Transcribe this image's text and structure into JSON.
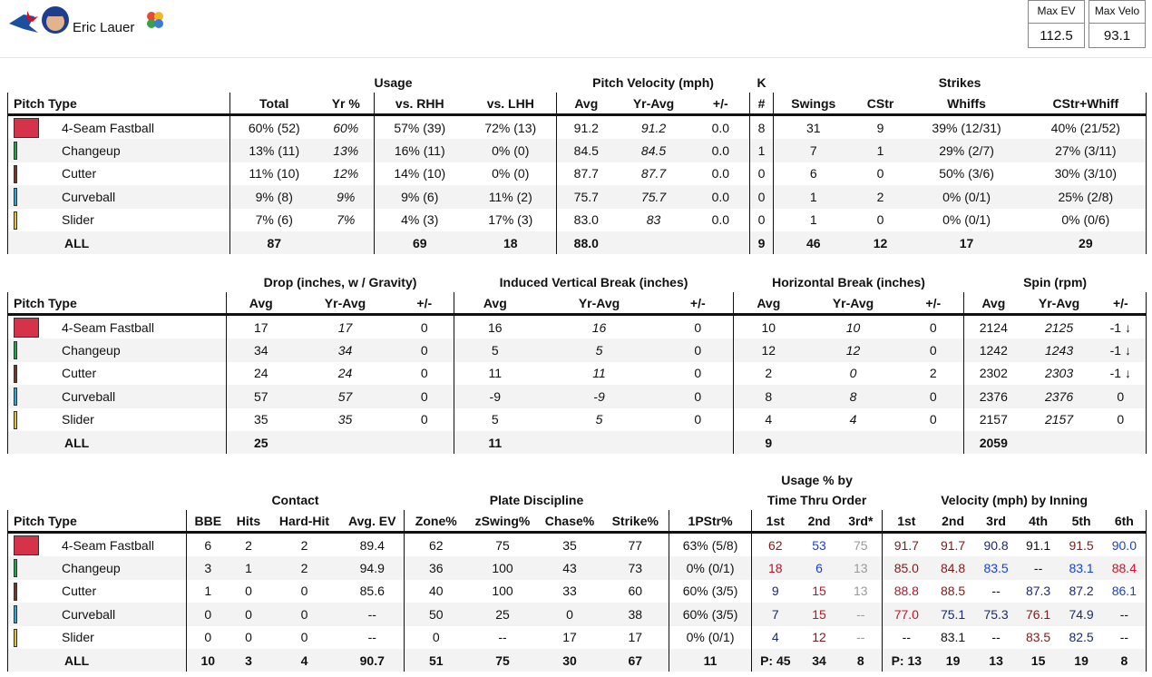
{
  "header": {
    "name": "Eric Lauer",
    "stats": [
      {
        "label": "Max EV",
        "value": "112.5"
      },
      {
        "label": "Max Velo",
        "value": "93.1"
      }
    ]
  },
  "tables": [
    {
      "groups": [
        null,
        "Usage",
        "Pitch Velocity (mph)",
        "K",
        "Strikes"
      ],
      "columns": [
        "Pitch Type",
        "Total",
        "Yr %",
        "vs. RHH",
        "vs. LHH",
        "Avg",
        "Yr-Avg",
        "+/-",
        "#",
        "Swings",
        "CStr",
        "Whiffs",
        "CStr+Whiff"
      ],
      "rows": [
        {
          "name": "4-Seam Fastball",
          "color": "#d6334a",
          "cells": [
            "60% (52)",
            "60%",
            "57% (39)",
            "72% (13)",
            "91.2",
            "91.2",
            "0.0",
            "8",
            "31",
            "9",
            "39% (12/31)",
            "40% (21/52)"
          ]
        },
        {
          "name": "Changeup",
          "color": "#1fa84a",
          "cells": [
            "13% (11)",
            "13%",
            "16% (11)",
            "0% (0)",
            "84.5",
            "84.5",
            "0.0",
            "1",
            "7",
            "1",
            "29% (2/7)",
            "27% (3/11)"
          ]
        },
        {
          "name": "Cutter",
          "color": "#7a3327",
          "cells": [
            "11% (10)",
            "12%",
            "14% (10)",
            "0% (0)",
            "87.7",
            "87.7",
            "0.0",
            "0",
            "6",
            "0",
            "50% (3/6)",
            "30% (3/10)"
          ]
        },
        {
          "name": "Curveball",
          "color": "#27a8e0",
          "cells": [
            "9% (8)",
            "9%",
            "9% (6)",
            "11% (2)",
            "75.7",
            "75.7",
            "0.0",
            "0",
            "1",
            "2",
            "0% (0/1)",
            "25% (2/8)"
          ]
        },
        {
          "name": "Slider",
          "color": "#e8c530",
          "cells": [
            "7% (6)",
            "7%",
            "4% (3)",
            "17% (3)",
            "83.0",
            "83",
            "0.0",
            "0",
            "1",
            "0",
            "0% (0/1)",
            "0% (0/6)"
          ]
        },
        {
          "name": "ALL",
          "cells": [
            "87",
            null,
            "69",
            "18",
            "88.0",
            null,
            null,
            "9",
            "46",
            "12",
            "17",
            "29"
          ]
        }
      ]
    },
    {
      "groups": [
        null,
        "Drop (inches, w / Gravity)",
        "Induced Vertical Break (inches)",
        "Horizontal Break (inches)",
        "Spin (rpm)"
      ],
      "columns": [
        "Pitch Type",
        "Avg",
        "Yr-Avg",
        "+/-",
        "Avg",
        "Yr-Avg",
        "+/-",
        "Avg",
        "Yr-Avg",
        "+/-",
        "Avg",
        "Yr-Avg",
        "+/-"
      ],
      "rows": [
        {
          "name": "4-Seam Fastball",
          "color": "#d6334a",
          "cells": [
            "17",
            "17",
            "0",
            "16",
            "16",
            "0",
            "10",
            "10",
            "0",
            "2124",
            "2125",
            "-1 ↓"
          ]
        },
        {
          "name": "Changeup",
          "color": "#1fa84a",
          "cells": [
            "34",
            "34",
            "0",
            "5",
            "5",
            "0",
            "12",
            "12",
            "0",
            "1242",
            "1243",
            "-1 ↓"
          ]
        },
        {
          "name": "Cutter",
          "color": "#7a3327",
          "cells": [
            "24",
            "24",
            "0",
            "11",
            "11",
            "0",
            "2",
            "0",
            "2",
            "2302",
            "2303",
            "-1 ↓"
          ]
        },
        {
          "name": "Curveball",
          "color": "#27a8e0",
          "cells": [
            "57",
            "57",
            "0",
            "-9",
            "-9",
            "0",
            "8",
            "8",
            "0",
            "2376",
            "2376",
            "0"
          ]
        },
        {
          "name": "Slider",
          "color": "#e8c530",
          "cells": [
            "35",
            "35",
            "0",
            "5",
            "5",
            "0",
            "4",
            "4",
            "0",
            "2157",
            "2157",
            "0"
          ]
        },
        {
          "name": "ALL",
          "cells": [
            "25",
            null,
            null,
            "11",
            null,
            null,
            "9",
            null,
            null,
            "2059",
            null,
            null
          ]
        }
      ]
    },
    {
      "groups": [
        null,
        "Contact",
        "Plate Discipline",
        null,
        [
          "Usage % by",
          "Time Thru Order"
        ],
        "Velocity (mph) by Inning"
      ],
      "columns": [
        "Pitch Type",
        "BBE",
        "Hits",
        "Hard-Hit",
        "Avg. EV",
        "Zone%",
        "zSwing%",
        "Chase%",
        "Strike%",
        "1PStr%",
        "1st",
        "2nd",
        "3rd*",
        "1st",
        "2nd",
        "3rd",
        "4th",
        "5th",
        "6th"
      ],
      "rows": [
        {
          "name": "4-Seam Fastball",
          "color": "#d6334a",
          "cells": [
            "6",
            "2",
            "2",
            "89.4",
            "62",
            "75",
            "35",
            "77",
            "63% (5/8)",
            {
              "text": "62",
              "color": "#7b1c1c"
            },
            {
              "text": "53",
              "color": "#1a3fd6"
            },
            {
              "text": "75",
              "color": "#999999"
            },
            {
              "text": "91.7",
              "color": "#7b1c1c"
            },
            {
              "text": "91.7",
              "color": "#7b1c1c"
            },
            {
              "text": "90.8",
              "color": "#1b2a6b"
            },
            {
              "text": "91.1",
              "color": "#111111"
            },
            {
              "text": "91.5",
              "color": "#7b1c1c"
            },
            {
              "text": "90.0",
              "color": "#1a3fd6"
            }
          ]
        },
        {
          "name": "Changeup",
          "color": "#1fa84a",
          "cells": [
            "3",
            "1",
            "2",
            "94.9",
            "36",
            "100",
            "43",
            "73",
            "0% (0/1)",
            {
              "text": "18",
              "color": "#b0182a"
            },
            {
              "text": "6",
              "color": "#1a3fd6"
            },
            {
              "text": "13",
              "color": "#999999"
            },
            {
              "text": "85.0",
              "color": "#7b1c1c"
            },
            {
              "text": "84.8",
              "color": "#7b1c1c"
            },
            {
              "text": "83.5",
              "color": "#1a3fd6"
            },
            {
              "text": "--",
              "color": "#111111"
            },
            {
              "text": "83.1",
              "color": "#1a3fd6"
            },
            {
              "text": "88.4",
              "color": "#d0102a"
            }
          ]
        },
        {
          "name": "Cutter",
          "color": "#7a3327",
          "cells": [
            "1",
            "0",
            "0",
            "85.6",
            "40",
            "100",
            "33",
            "60",
            "60% (3/5)",
            {
              "text": "9",
              "color": "#1b2a6b"
            },
            {
              "text": "15",
              "color": "#b0182a"
            },
            {
              "text": "13",
              "color": "#999999"
            },
            {
              "text": "88.8",
              "color": "#b0182a"
            },
            {
              "text": "88.5",
              "color": "#7b1c1c"
            },
            {
              "text": "--",
              "color": "#111111"
            },
            {
              "text": "87.3",
              "color": "#1b2a6b"
            },
            {
              "text": "87.2",
              "color": "#1b2a6b"
            },
            {
              "text": "86.1",
              "color": "#1a3fd6"
            }
          ]
        },
        {
          "name": "Curveball",
          "color": "#27a8e0",
          "cells": [
            "0",
            "0",
            "0",
            "--",
            "50",
            "25",
            "0",
            "38",
            "60% (3/5)",
            {
              "text": "7",
              "color": "#1b2a6b"
            },
            {
              "text": "15",
              "color": "#b0182a"
            },
            {
              "text": "--",
              "color": "#999999"
            },
            {
              "text": "77.0",
              "color": "#d0102a"
            },
            {
              "text": "75.1",
              "color": "#1b2a6b"
            },
            {
              "text": "75.3",
              "color": "#1b2a6b"
            },
            {
              "text": "76.1",
              "color": "#7b1c1c"
            },
            {
              "text": "74.9",
              "color": "#1b2a6b"
            },
            {
              "text": "--",
              "color": "#111111"
            }
          ]
        },
        {
          "name": "Slider",
          "color": "#e8c530",
          "cells": [
            "0",
            "0",
            "0",
            "--",
            "0",
            "--",
            "17",
            "17",
            "0% (0/1)",
            {
              "text": "4",
              "color": "#1b2a6b"
            },
            {
              "text": "12",
              "color": "#7b1c1c"
            },
            {
              "text": "--",
              "color": "#999999"
            },
            {
              "text": "--",
              "color": "#111111"
            },
            {
              "text": "83.1",
              "color": "#111111"
            },
            {
              "text": "--",
              "color": "#111111"
            },
            {
              "text": "83.5",
              "color": "#7b1c1c"
            },
            {
              "text": "82.5",
              "color": "#1b2a6b"
            },
            {
              "text": "--",
              "color": "#111111"
            }
          ]
        },
        {
          "name": "ALL",
          "cells": [
            "10",
            "3",
            "4",
            "90.7",
            "51",
            "75",
            "30",
            "67",
            "11",
            "P: 45",
            "34",
            "8",
            "P: 13",
            "19",
            "13",
            "15",
            "19",
            "8"
          ]
        }
      ]
    }
  ]
}
